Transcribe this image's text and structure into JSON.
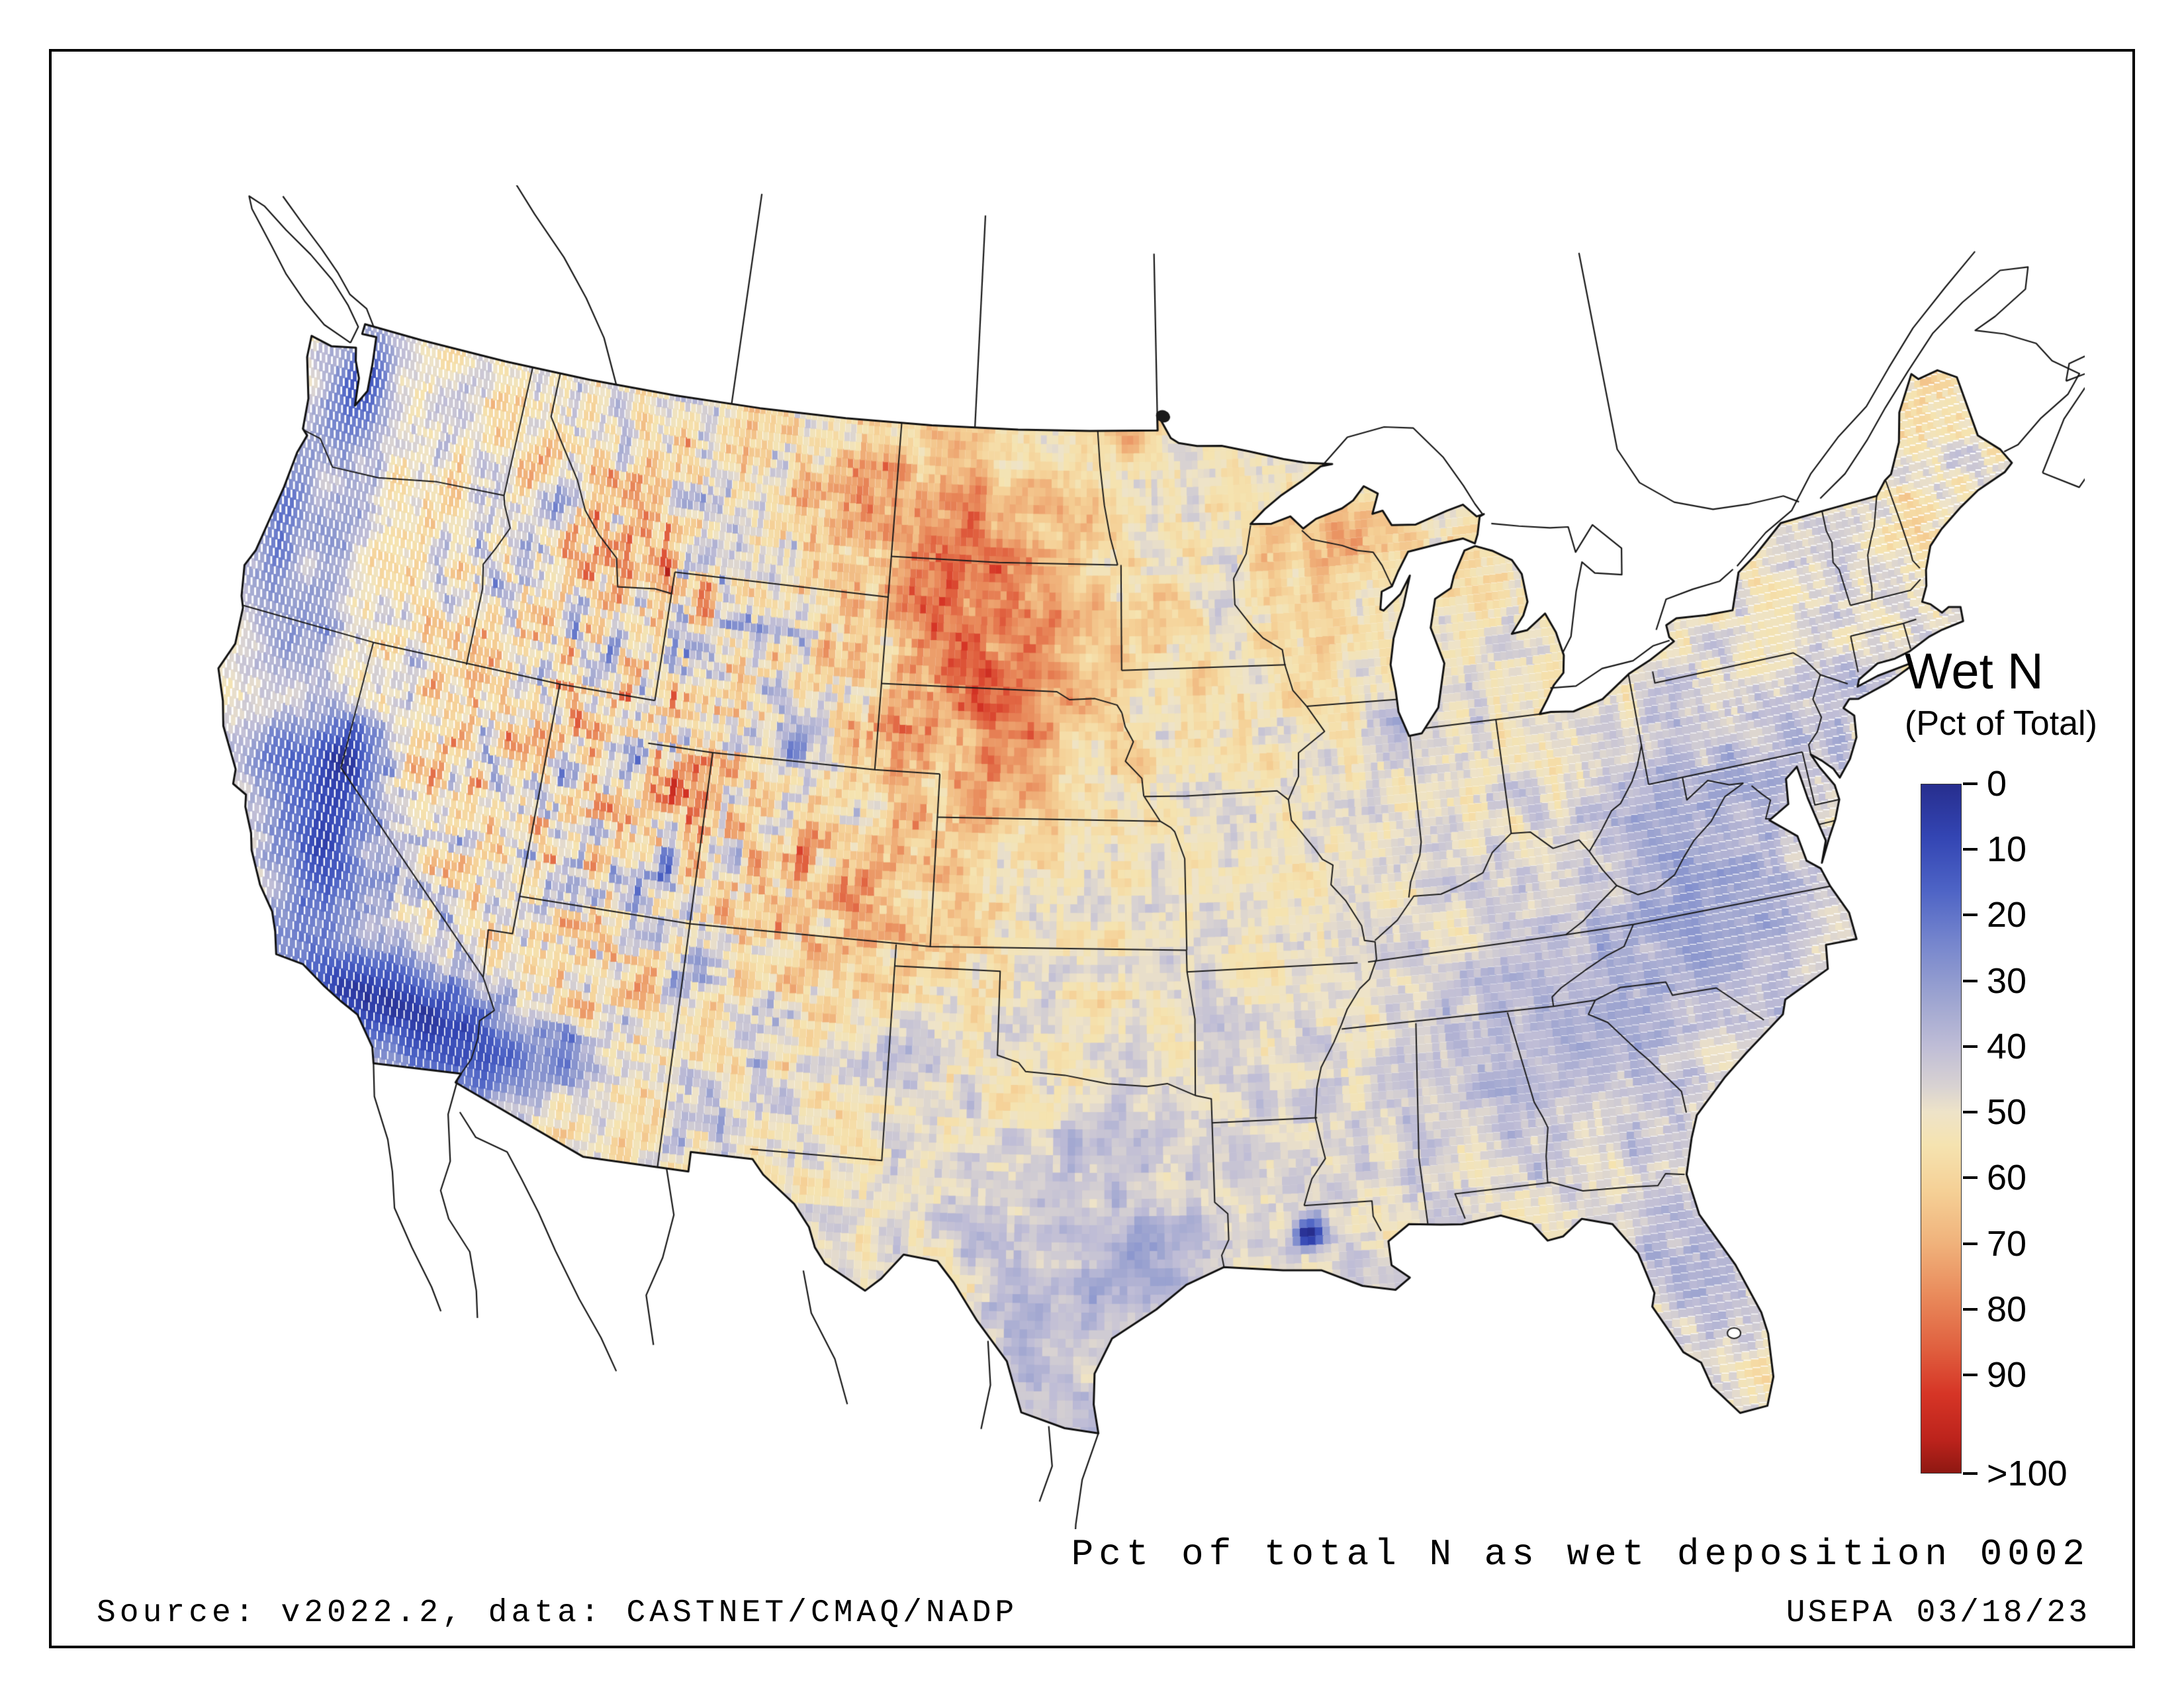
{
  "legend": {
    "title": "Wet N",
    "subtitle": "(Pct of Total)",
    "scale_max": 105,
    "ticks": [
      {
        "label": "0",
        "value": 0
      },
      {
        "label": "10",
        "value": 10
      },
      {
        "label": "20",
        "value": 20
      },
      {
        "label": "30",
        "value": 30
      },
      {
        "label": "40",
        "value": 40
      },
      {
        "label": "50",
        "value": 50
      },
      {
        "label": "60",
        "value": 60
      },
      {
        "label": "70",
        "value": 70
      },
      {
        "label": "80",
        "value": 80
      },
      {
        "label": "90",
        "value": 90
      },
      {
        "label": ">100",
        "value": 105
      }
    ],
    "colormap": [
      {
        "value": 0,
        "color": "#272e8e"
      },
      {
        "value": 8,
        "color": "#3345b3"
      },
      {
        "value": 16,
        "color": "#4d63c5"
      },
      {
        "value": 24,
        "color": "#7585cd"
      },
      {
        "value": 32,
        "color": "#9aa2d0"
      },
      {
        "value": 40,
        "color": "#bfbdd6"
      },
      {
        "value": 46,
        "color": "#d8d2d2"
      },
      {
        "value": 50,
        "color": "#eee3c8"
      },
      {
        "value": 55,
        "color": "#f5e3b0"
      },
      {
        "value": 62,
        "color": "#f5d096"
      },
      {
        "value": 70,
        "color": "#f0b27b"
      },
      {
        "value": 78,
        "color": "#e98a5b"
      },
      {
        "value": 86,
        "color": "#e0603f"
      },
      {
        "value": 93,
        "color": "#d63526"
      },
      {
        "value": 100,
        "color": "#bc231c"
      },
      {
        "value": 105,
        "color": "#8e1812"
      }
    ]
  },
  "captions": {
    "plot_label": "Pct of total N as wet deposition 0002",
    "source": "Source: v2022.2, data: CASTNET/CMAQ/NADP",
    "agency_date": "USEPA 03/18/23"
  },
  "frame_color": "#000000",
  "background_color": "#ffffff"
}
